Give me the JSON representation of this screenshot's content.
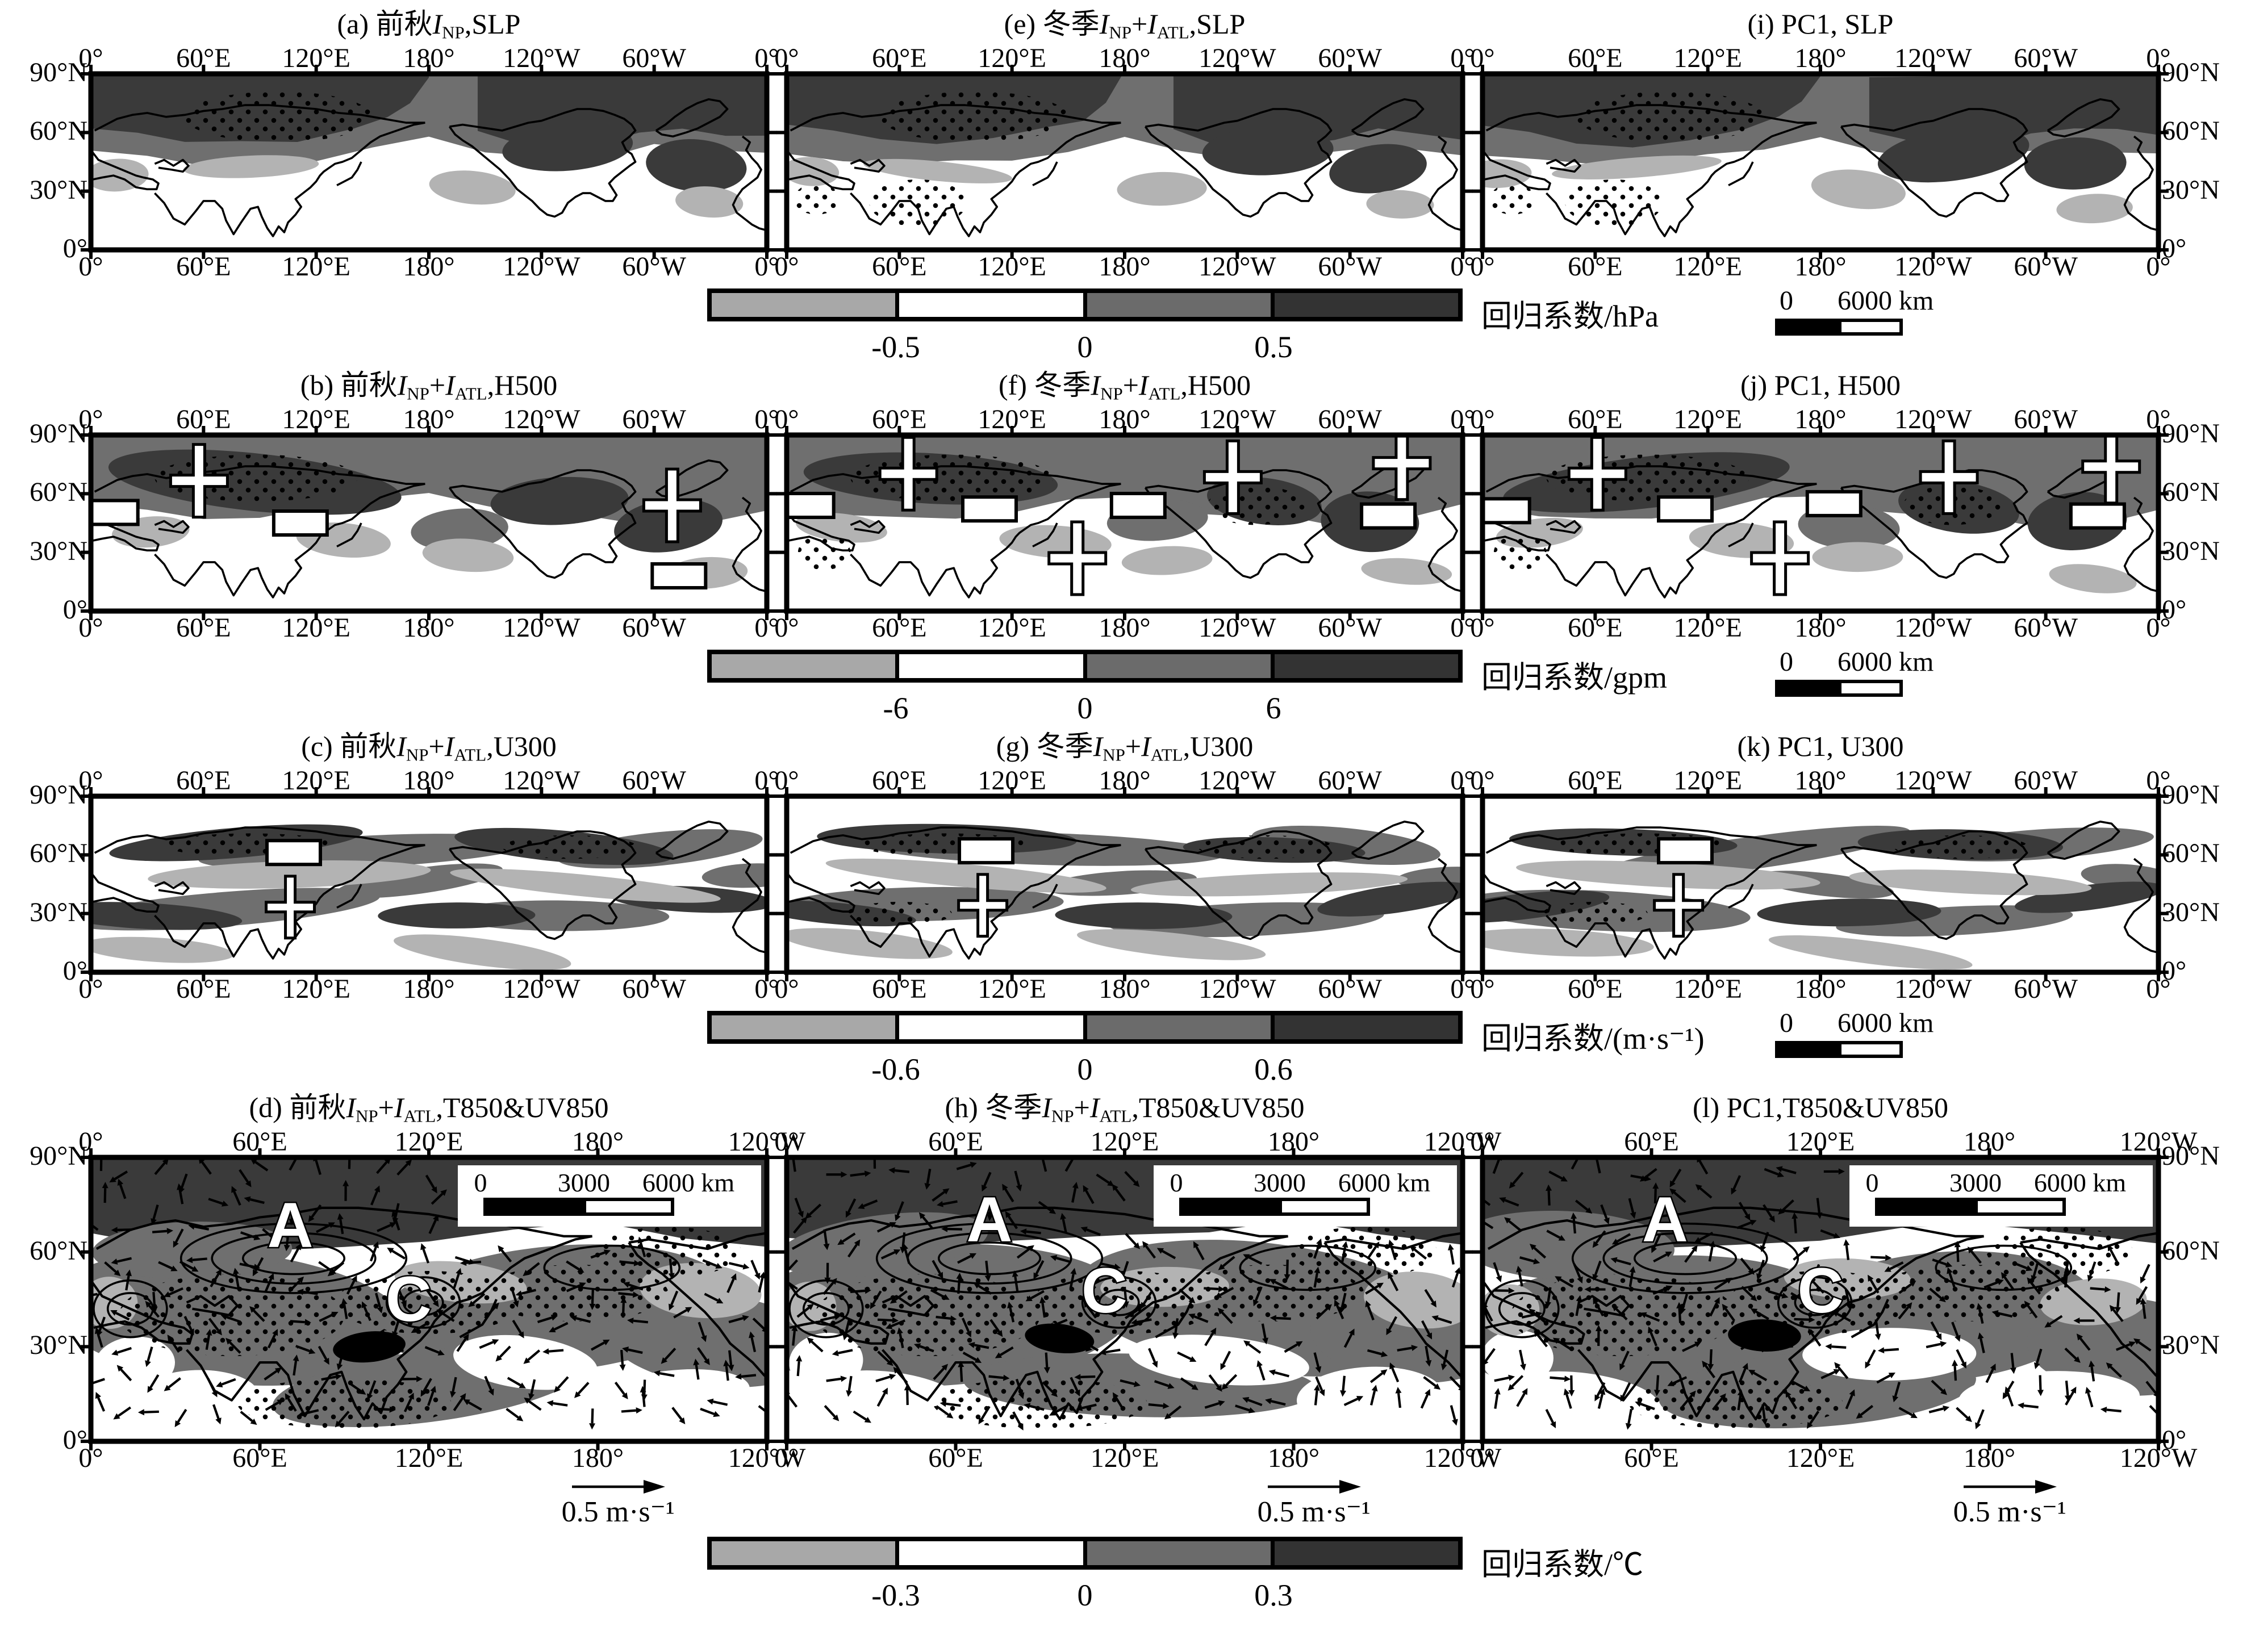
{
  "axes": {
    "x_ticks_long": [
      "0°",
      "60°E",
      "120°E",
      "180°",
      "120°W",
      "60°W",
      "0°"
    ],
    "x_ticks_short": [
      "0°",
      "60°E",
      "120°E",
      "180°",
      "120°W"
    ],
    "y_ticks": [
      "90°N",
      "60°N",
      "30°N",
      "0°"
    ]
  },
  "colorbar_colors": [
    "#a8a8a8",
    "#ffffff",
    "#6b6b6b",
    "#333333"
  ],
  "map_colors": {
    "light": "#b3b3b3",
    "mid": "#6f6f6f",
    "dark": "#3a3a3a",
    "black": "#000000",
    "water": "#ffffff"
  },
  "rows": [
    {
      "name": "SLP",
      "panels": [
        {
          "id": "a",
          "title": [
            {
              "t": "(a) 前秋"
            },
            {
              "t": "I",
              "s": "i"
            },
            {
              "t": "NP",
              "s": "sub"
            },
            {
              "t": ",SLP"
            }
          ],
          "markers": []
        },
        {
          "id": "e",
          "title": [
            {
              "t": "(e) 冬季"
            },
            {
              "t": "I",
              "s": "i"
            },
            {
              "t": "NP",
              "s": "sub"
            },
            {
              "t": "+"
            },
            {
              "t": "I",
              "s": "i"
            },
            {
              "t": "ATL",
              "s": "sub"
            },
            {
              "t": ",SLP"
            }
          ],
          "markers": []
        },
        {
          "id": "i",
          "title": [
            {
              "t": "(i) PC1, SLP"
            }
          ],
          "markers": []
        }
      ],
      "colorbar": {
        "ticks": [
          "-0.5",
          "0",
          "0.5"
        ],
        "label": "回归系数/hPa"
      },
      "scalebar": {
        "zero": "0",
        "end": "6000 km"
      }
    },
    {
      "name": "H500",
      "panels": [
        {
          "id": "b",
          "title": [
            {
              "t": "(b) 前秋"
            },
            {
              "t": "I",
              "s": "i"
            },
            {
              "t": "NP",
              "s": "sub"
            },
            {
              "t": "+"
            },
            {
              "t": "I",
              "s": "i"
            },
            {
              "t": "ATL",
              "s": "sub"
            },
            {
              "t": ",H500"
            }
          ],
          "markers": [
            {
              "m": "plus",
              "x": 0.16,
              "y": 0.26
            },
            {
              "m": "minus",
              "x": 0.03,
              "y": 0.44
            },
            {
              "m": "minus",
              "x": 0.31,
              "y": 0.5
            },
            {
              "m": "plus",
              "x": 0.86,
              "y": 0.4
            },
            {
              "m": "minus",
              "x": 0.87,
              "y": 0.8
            }
          ]
        },
        {
          "id": "f",
          "title": [
            {
              "t": "(f) 冬季"
            },
            {
              "t": "I",
              "s": "i"
            },
            {
              "t": "NP",
              "s": "sub"
            },
            {
              "t": "+"
            },
            {
              "t": "I",
              "s": "i"
            },
            {
              "t": "ATL",
              "s": "sub"
            },
            {
              "t": ",H500"
            }
          ],
          "markers": [
            {
              "m": "minus",
              "x": 0.03,
              "y": 0.4
            },
            {
              "m": "plus",
              "x": 0.18,
              "y": 0.22
            },
            {
              "m": "minus",
              "x": 0.3,
              "y": 0.42
            },
            {
              "m": "plus",
              "x": 0.43,
              "y": 0.7
            },
            {
              "m": "minus",
              "x": 0.52,
              "y": 0.4
            },
            {
              "m": "plus",
              "x": 0.66,
              "y": 0.24
            },
            {
              "m": "plus",
              "x": 0.91,
              "y": 0.16
            },
            {
              "m": "minus",
              "x": 0.89,
              "y": 0.46
            }
          ]
        },
        {
          "id": "j",
          "title": [
            {
              "t": "(j) PC1, H500"
            }
          ],
          "markers": [
            {
              "m": "plus",
              "x": 0.17,
              "y": 0.22
            },
            {
              "m": "minus",
              "x": 0.03,
              "y": 0.43
            },
            {
              "m": "minus",
              "x": 0.3,
              "y": 0.42
            },
            {
              "m": "plus",
              "x": 0.44,
              "y": 0.7
            },
            {
              "m": "minus",
              "x": 0.52,
              "y": 0.39
            },
            {
              "m": "plus",
              "x": 0.69,
              "y": 0.24
            },
            {
              "m": "plus",
              "x": 0.93,
              "y": 0.18
            },
            {
              "m": "minus",
              "x": 0.91,
              "y": 0.46
            }
          ]
        }
      ],
      "colorbar": {
        "ticks": [
          "-6",
          "0",
          "6"
        ],
        "label": "回归系数/gpm"
      },
      "scalebar": {
        "zero": "0",
        "end": "6000 km"
      }
    },
    {
      "name": "U300",
      "panels": [
        {
          "id": "c",
          "title": [
            {
              "t": "(c) 前秋"
            },
            {
              "t": "I",
              "s": "i"
            },
            {
              "t": "NP",
              "s": "sub"
            },
            {
              "t": "+"
            },
            {
              "t": "I",
              "s": "i"
            },
            {
              "t": "ATL",
              "s": "sub"
            },
            {
              "t": ",U300"
            }
          ],
          "markers": [
            {
              "m": "minus",
              "x": 0.3,
              "y": 0.32
            },
            {
              "m": "plus",
              "x": 0.295,
              "y": 0.63
            }
          ]
        },
        {
          "id": "g",
          "title": [
            {
              "t": "(g) 冬季"
            },
            {
              "t": "I",
              "s": "i"
            },
            {
              "t": "NP",
              "s": "sub"
            },
            {
              "t": "+"
            },
            {
              "t": "I",
              "s": "i"
            },
            {
              "t": "ATL",
              "s": "sub"
            },
            {
              "t": ",U300"
            }
          ],
          "markers": [
            {
              "m": "minus",
              "x": 0.295,
              "y": 0.31
            },
            {
              "m": "plus",
              "x": 0.29,
              "y": 0.62
            }
          ]
        },
        {
          "id": "k",
          "title": [
            {
              "t": "(k) PC1, U300"
            }
          ],
          "markers": [
            {
              "m": "minus",
              "x": 0.3,
              "y": 0.31
            },
            {
              "m": "plus",
              "x": 0.29,
              "y": 0.62
            }
          ]
        }
      ],
      "colorbar": {
        "ticks": [
          "-0.6",
          "0",
          "0.6"
        ],
        "label": "回归系数/(m·s⁻¹)"
      },
      "scalebar": {
        "zero": "0",
        "end": "6000 km"
      }
    },
    {
      "name": "T850&UV850",
      "panels": [
        {
          "id": "d",
          "title": [
            {
              "t": "(d) 前秋"
            },
            {
              "t": "I",
              "s": "i"
            },
            {
              "t": "NP",
              "s": "sub"
            },
            {
              "t": "+"
            },
            {
              "t": "I",
              "s": "i"
            },
            {
              "t": "ATL",
              "s": "sub"
            },
            {
              "t": ",T850&UV850"
            }
          ],
          "markers": [],
          "letters": [
            {
              "ch": "A",
              "x": 0.295,
              "y": 0.24
            },
            {
              "ch": "C",
              "x": 0.47,
              "y": 0.5
            }
          ]
        },
        {
          "id": "h",
          "title": [
            {
              "t": "(h) 冬季"
            },
            {
              "t": "I",
              "s": "i"
            },
            {
              "t": "NP",
              "s": "sub"
            },
            {
              "t": "+"
            },
            {
              "t": "I",
              "s": "i"
            },
            {
              "t": "ATL",
              "s": "sub"
            },
            {
              "t": ",T850&UV850"
            }
          ],
          "markers": [],
          "letters": [
            {
              "ch": "A",
              "x": 0.3,
              "y": 0.22
            },
            {
              "ch": "C",
              "x": 0.47,
              "y": 0.47
            }
          ]
        },
        {
          "id": "l",
          "title": [
            {
              "t": "(l) PC1,T850&UV850"
            }
          ],
          "markers": [],
          "letters": [
            {
              "ch": "A",
              "x": 0.27,
              "y": 0.22
            },
            {
              "ch": "C",
              "x": 0.5,
              "y": 0.47
            }
          ]
        }
      ],
      "colorbar": {
        "ticks": [
          "-0.3",
          "0",
          "0.3"
        ],
        "label": "回归系数/℃"
      },
      "inset_scalebar": {
        "zero": "0",
        "mid": "3000",
        "end": "6000 km"
      },
      "vector_legend": "0.5 m·s⁻¹"
    }
  ],
  "chart_data": {
    "type": "heatmap",
    "subtype": "geographic-regression-map-grid",
    "grid": {
      "rows": 4,
      "cols": 3
    },
    "panels": [
      {
        "id": "a",
        "title": "(a) 前秋INP,SLP",
        "variable": "SLP"
      },
      {
        "id": "e",
        "title": "(e) 冬季INP+IATL,SLP",
        "variable": "SLP"
      },
      {
        "id": "i",
        "title": "(i) PC1, SLP",
        "variable": "SLP"
      },
      {
        "id": "b",
        "title": "(b) 前秋INP+IATL,H500",
        "variable": "H500"
      },
      {
        "id": "f",
        "title": "(f) 冬季INP+IATL,H500",
        "variable": "H500"
      },
      {
        "id": "j",
        "title": "(j) PC1, H500",
        "variable": "H500"
      },
      {
        "id": "c",
        "title": "(c) 前秋INP+IATL,U300",
        "variable": "U300"
      },
      {
        "id": "g",
        "title": "(g) 冬季INP+IATL,U300",
        "variable": "U300"
      },
      {
        "id": "k",
        "title": "(k) PC1, U300",
        "variable": "U300"
      },
      {
        "id": "d",
        "title": "(d) 前秋INP+IATL,T850&UV850",
        "variable": "T850&UV850"
      },
      {
        "id": "h",
        "title": "(h) 冬季INP+IATL,T850&UV850",
        "variable": "T850&UV850"
      },
      {
        "id": "l",
        "title": "(l) PC1,T850&UV850",
        "variable": "T850&UV850"
      }
    ],
    "x_axis": {
      "ticks_rows_1_to_3": [
        "0°",
        "60°E",
        "120°E",
        "180°",
        "120°W",
        "60°W",
        "0°"
      ],
      "ticks_row_4": [
        "0°",
        "60°E",
        "120°E",
        "180°",
        "120°W"
      ]
    },
    "y_axis": {
      "ticks": [
        "90°N",
        "60°N",
        "30°N",
        "0°"
      ]
    },
    "colorbars": [
      {
        "label": "回归系数/hPa",
        "ticks": [
          -0.5,
          0,
          0.5
        ]
      },
      {
        "label": "回归系数/gpm",
        "ticks": [
          -6,
          0,
          6
        ]
      },
      {
        "label": "回归系数/(m·s⁻¹)",
        "ticks": [
          -0.6,
          0,
          0.6
        ]
      },
      {
        "label": "回归系数/℃",
        "ticks": [
          -0.3,
          0,
          0.3
        ]
      }
    ],
    "scale_bars": {
      "rows_1_to_3": "0–6000 km",
      "row_4_inset": "0–3000–6000 km"
    },
    "vector_reference": "0.5 m·s⁻¹",
    "legend_position": "below each row"
  }
}
